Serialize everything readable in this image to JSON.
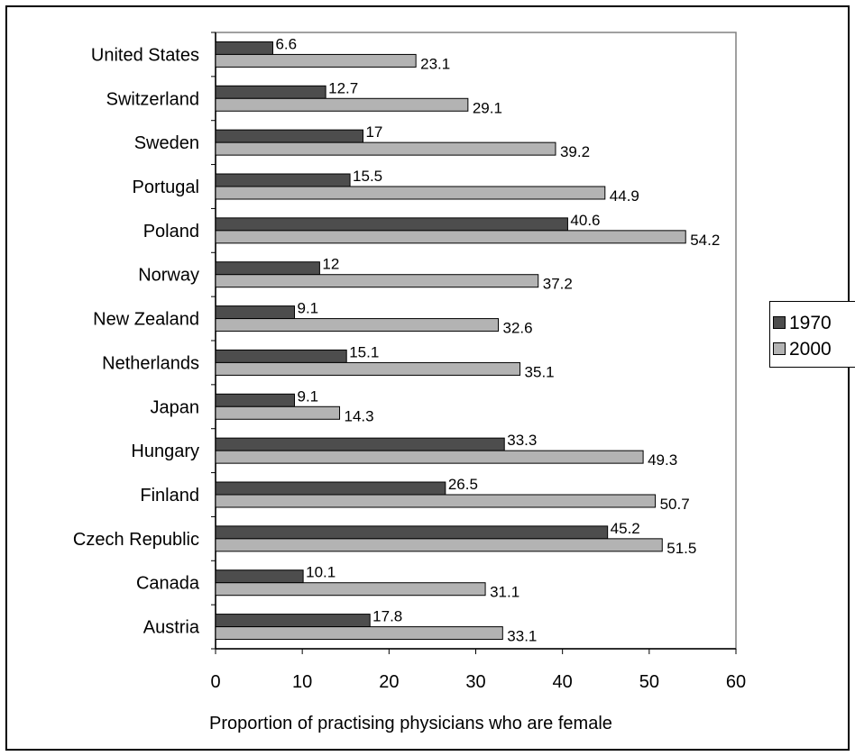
{
  "chart_data": {
    "type": "bar",
    "orientation": "horizontal",
    "title": "",
    "xlabel": "Proportion of practising physicians who are female",
    "ylabel": "",
    "xlim": [
      0,
      60
    ],
    "x_ticks": [
      "0",
      "10",
      "20",
      "30",
      "40",
      "50",
      "60"
    ],
    "grid": false,
    "legend_position": "right",
    "categories": [
      "United States",
      "Switzerland",
      "Sweden",
      "Portugal",
      "Poland",
      "Norway",
      "New Zealand",
      "Netherlands",
      "Japan",
      "Hungary",
      "Finland",
      "Czech Republic",
      "Canada",
      "Austria"
    ],
    "series": [
      {
        "name": "1970",
        "color": "#4d4d4d",
        "values": [
          6.6,
          12.7,
          17,
          15.5,
          40.6,
          12,
          9.1,
          15.1,
          9.1,
          33.3,
          26.5,
          45.2,
          10.1,
          17.8
        ]
      },
      {
        "name": "2000",
        "color": "#b3b3b3",
        "values": [
          23.1,
          29.1,
          39.2,
          44.9,
          54.2,
          37.2,
          32.6,
          35.1,
          14.3,
          49.3,
          50.7,
          51.5,
          31.1,
          33.1
        ]
      }
    ]
  }
}
